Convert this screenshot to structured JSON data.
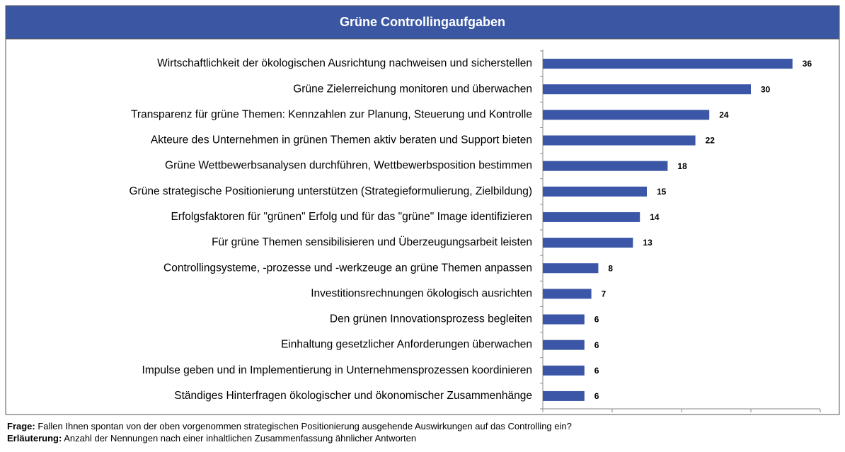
{
  "chart_data": {
    "type": "bar",
    "orientation": "horizontal",
    "title": "Grüne Controllingaufgaben",
    "categories": [
      "Wirtschaftlichkeit der ökologischen Ausrichtung nachweisen und sicherstellen",
      "Grüne Zielerreichung monitoren und überwachen",
      "Transparenz für grüne Themen: Kennzahlen zur Planung, Steuerung und Kontrolle",
      "Akteure des Unternehmen in grünen Themen aktiv beraten und Support bieten",
      "Grüne Wettbewerbsanalysen durchführen, Wettbewerbsposition bestimmen",
      "Grüne strategische Positionierung unterstützen (Strategieformulierung, Zielbildung)",
      "Erfolgsfaktoren für \"grünen\" Erfolg und für das \"grüne\" Image identifizieren",
      "Für grüne Themen sensibilisieren und Überzeugungsarbeit leisten",
      "Controllingsysteme, -prozesse und -werkzeuge an grüne Themen anpassen",
      "Investitionsrechnungen ökologisch ausrichten",
      "Den grünen Innovationsprozess begleiten",
      "Einhaltung gesetzlicher Anforderungen überwachen",
      "Impulse geben und in Implementierung in Unternehmensprozessen koordinieren",
      "Ständiges Hinterfragen ökologischer und ökonomischer  Zusammenhänge"
    ],
    "values": [
      36,
      30,
      24,
      22,
      18,
      15,
      14,
      13,
      8,
      7,
      6,
      6,
      6,
      6
    ],
    "color": "#3b56a6",
    "xlim": [
      0,
      40
    ],
    "xticks": [
      0,
      10,
      20,
      30,
      40
    ]
  },
  "footnotes": [
    {
      "label": "Frage:",
      "text": " Fallen Ihnen spontan von der oben vorgenommen strategischen Positionierung ausgehende Auswirkungen auf das Controlling ein?"
    },
    {
      "label": "Erläuterung:",
      "text": " Anzahl der Nennungen nach einer inhaltlichen Zusammenfassung ähnlicher Antworten"
    }
  ]
}
